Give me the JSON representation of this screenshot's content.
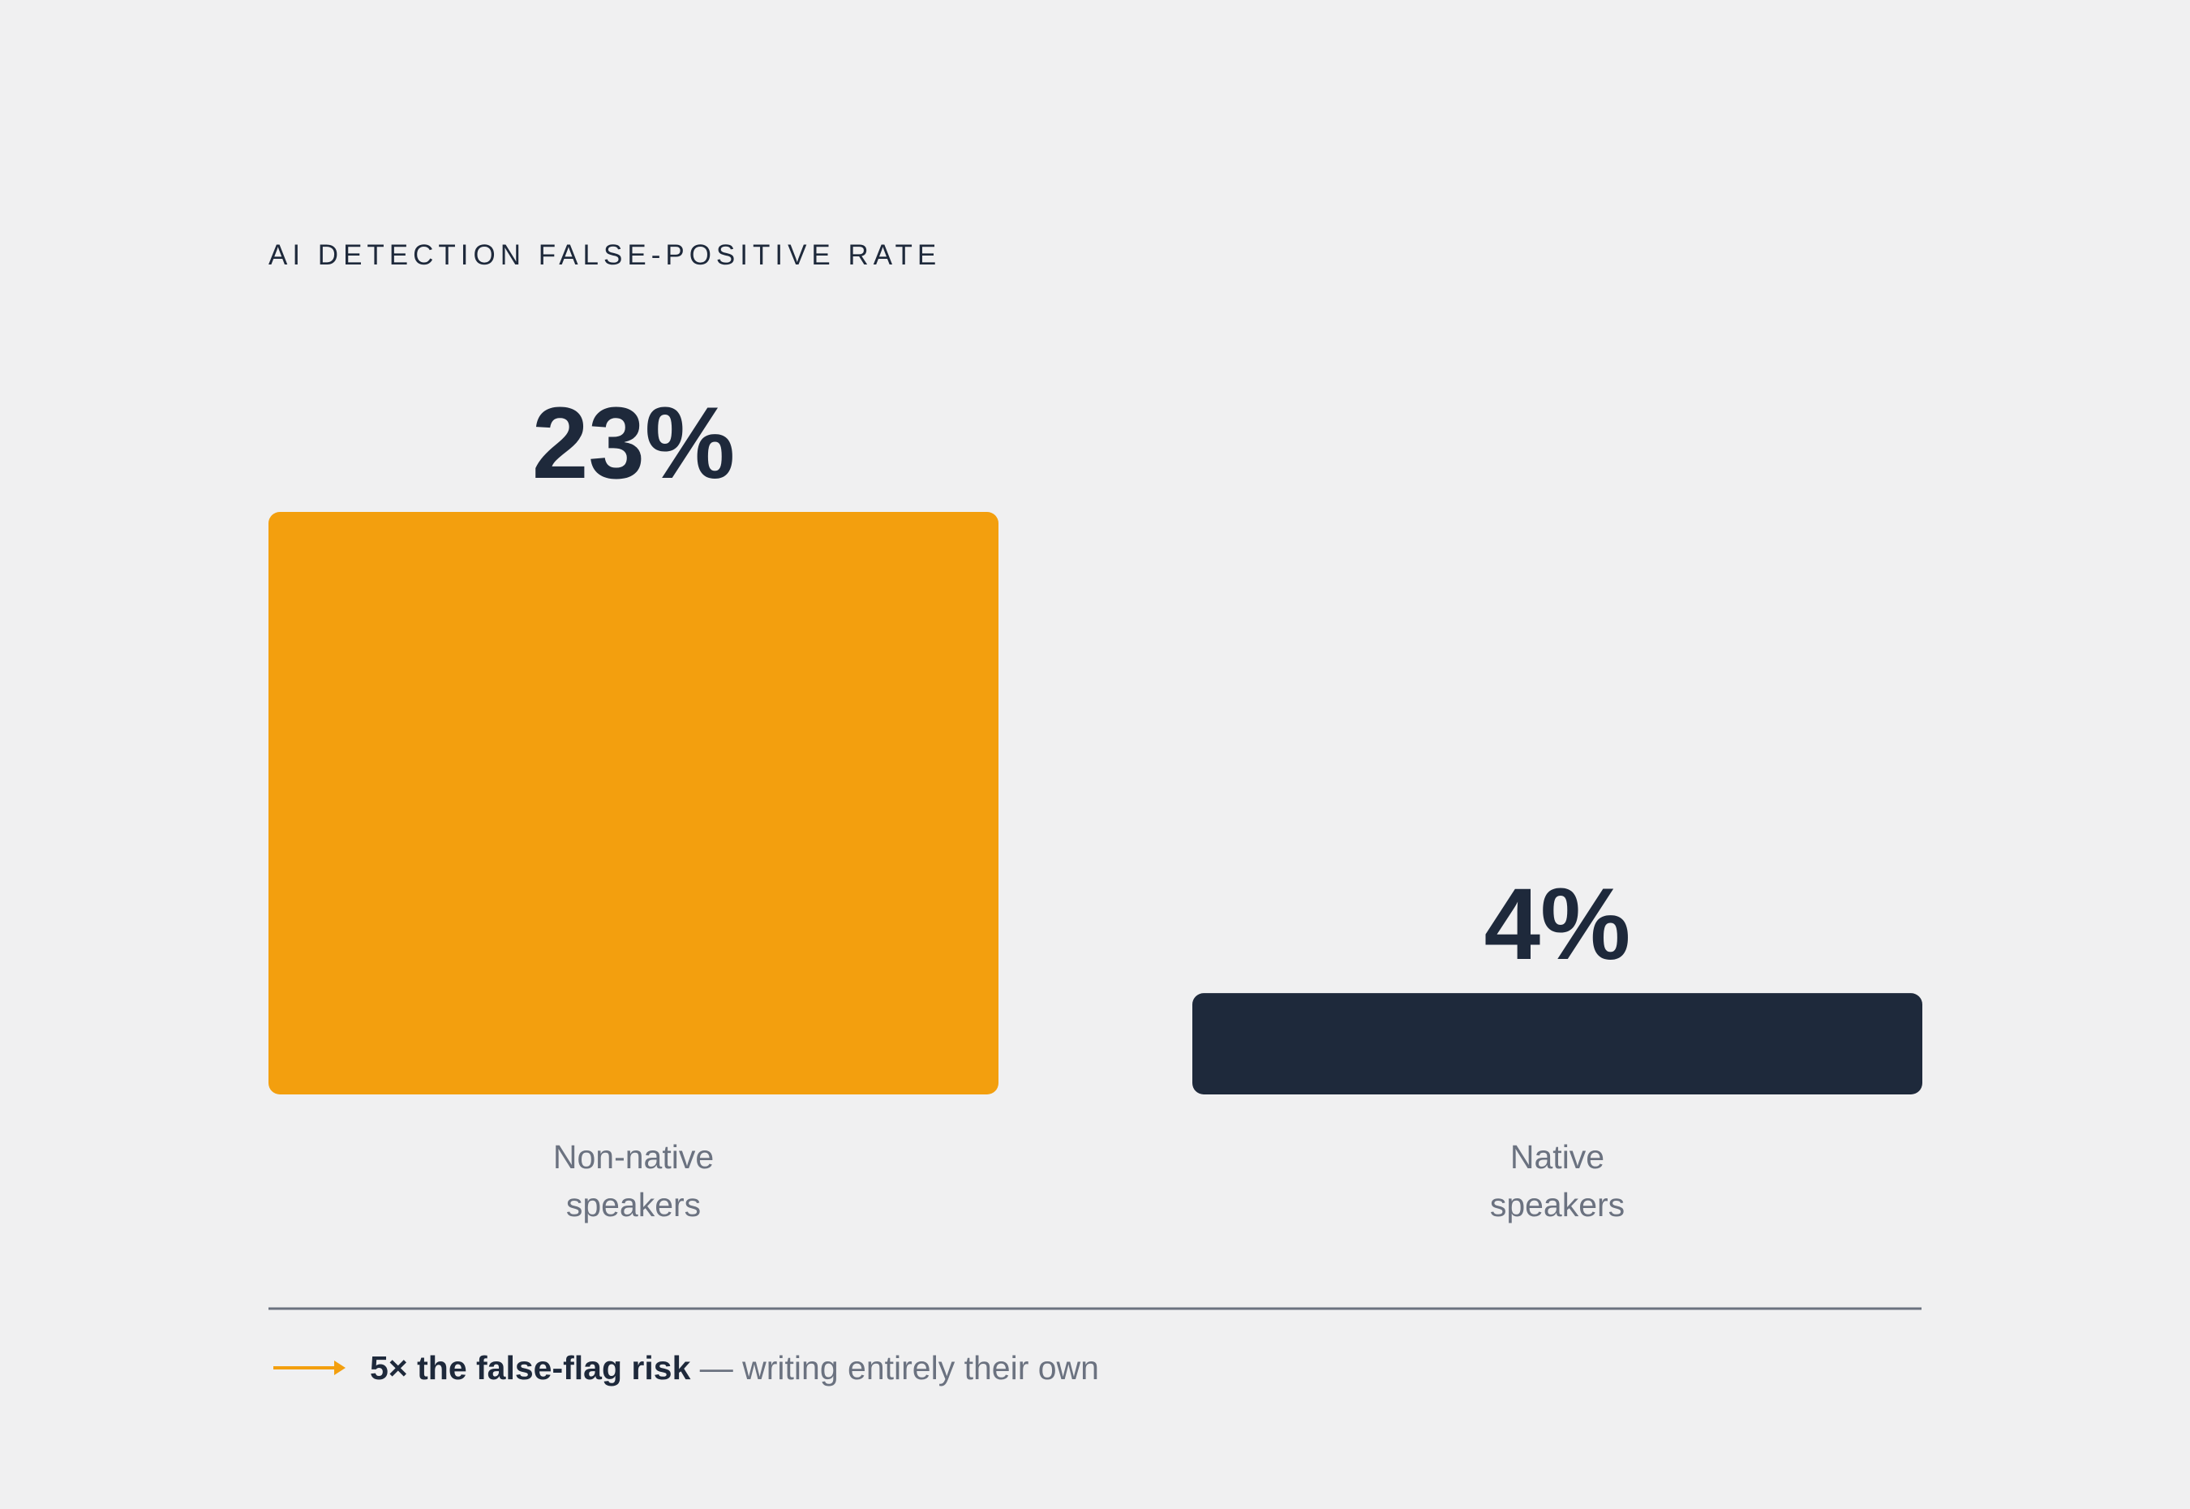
{
  "chart_data": {
    "type": "bar",
    "title": "AI DETECTION FALSE-POSITIVE RATE",
    "categories": [
      [
        "Non-native",
        "speakers"
      ],
      [
        "Native",
        "speakers"
      ]
    ],
    "values": [
      23,
      4
    ],
    "value_labels": [
      "23%",
      "4%"
    ],
    "colors": [
      "#f39f0e",
      "#1e293b"
    ],
    "ylim": [
      0,
      23
    ],
    "grid": false,
    "legend": "none"
  },
  "footnote": {
    "arrow_icon": "right-arrow-icon",
    "bold": "5× the false-flag risk",
    "rest": " — writing entirely their own"
  },
  "colors": {
    "background": "#f0f0f1",
    "text_dark": "#1e293b",
    "text_muted": "#6b7280",
    "accent": "#f39f0e",
    "divider": "#6b7280"
  }
}
